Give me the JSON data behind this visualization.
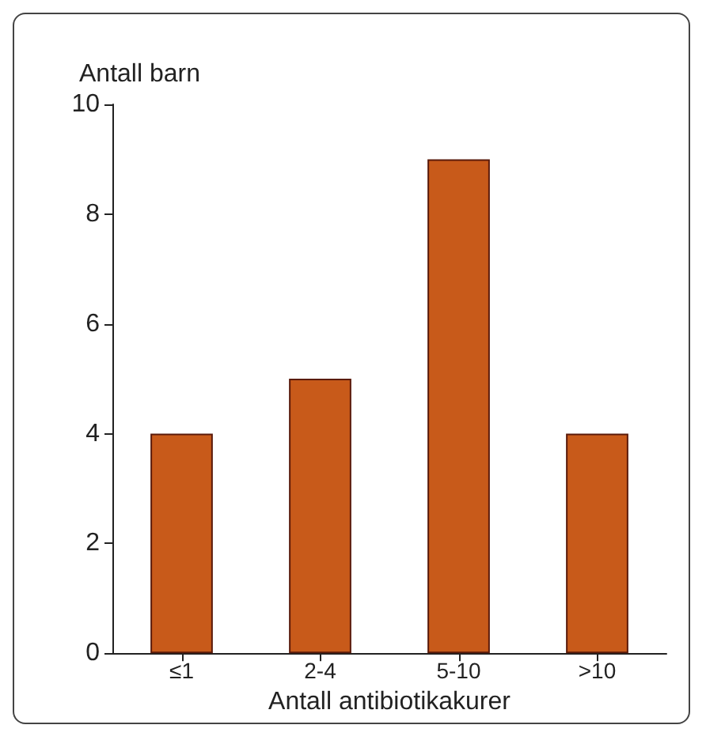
{
  "chart_data": {
    "type": "bar",
    "ylabel": "Antall barn",
    "xlabel": "Antall antibiotikakurer",
    "categories": [
      "≤1",
      "2-4",
      "5-10",
      ">10"
    ],
    "values": [
      4,
      5,
      9,
      4
    ],
    "color": "#c85a1a",
    "ylim": [
      0,
      10
    ],
    "yticks": [
      0,
      2,
      4,
      6,
      8,
      10
    ],
    "grid": false
  }
}
